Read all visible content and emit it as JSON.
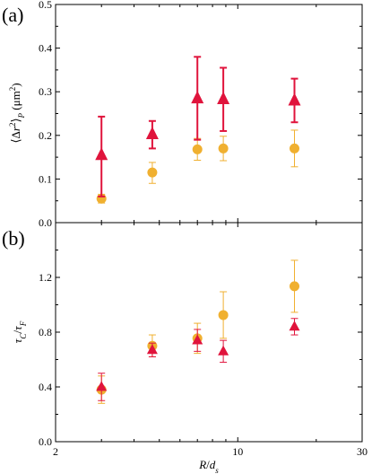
{
  "colors": {
    "triangle": "#e0143c",
    "circle": "#f0b030",
    "axis": "#000000"
  },
  "chart_data": [
    {
      "type": "scatter",
      "panel_label": "(a)",
      "xscale": "log",
      "xlim": [
        2,
        30
      ],
      "ylim": [
        0,
        0.5
      ],
      "yticks": [
        "0.0",
        "0.1",
        "0.2",
        "0.3",
        "0.4",
        "0.5"
      ],
      "ylabel": "⟨Δr²⟩_P (μm²)",
      "series": [
        {
          "marker": "triangle",
          "color": "#e0143c",
          "x": [
            3,
            4.7,
            7,
            8.8,
            16.5
          ],
          "y": [
            0.155,
            0.203,
            0.285,
            0.283,
            0.28
          ],
          "err_low": [
            0.095,
            0.033,
            0.095,
            0.073,
            0.05
          ],
          "err_high": [
            0.088,
            0.03,
            0.095,
            0.072,
            0.05
          ]
        },
        {
          "marker": "circle",
          "color": "#f0b030",
          "x": [
            3,
            4.7,
            7,
            8.8,
            16.5
          ],
          "y": [
            0.055,
            0.115,
            0.168,
            0.17,
            0.17
          ],
          "err_low": [
            0.01,
            0.025,
            0.025,
            0.028,
            0.042
          ],
          "err_high": [
            0.01,
            0.023,
            0.025,
            0.028,
            0.042
          ]
        }
      ]
    },
    {
      "type": "scatter",
      "panel_label": "(b)",
      "xscale": "log",
      "xlim": [
        2,
        30
      ],
      "xticks": [
        "2",
        "10",
        "30"
      ],
      "xlabel": "R/d_s",
      "ylim": [
        0,
        1.6
      ],
      "yticks": [
        "0.0",
        "0.4",
        "0.8",
        "1.2"
      ],
      "ylabel": "τ_C/τ_F",
      "series": [
        {
          "marker": "triangle",
          "color": "#e0143c",
          "x": [
            3,
            4.7,
            7,
            8.8,
            16.5
          ],
          "y": [
            0.4,
            0.67,
            0.74,
            0.66,
            0.84
          ],
          "err_low": [
            0.1,
            0.05,
            0.08,
            0.08,
            0.06
          ],
          "err_high": [
            0.1,
            0.05,
            0.08,
            0.08,
            0.06
          ]
        },
        {
          "marker": "circle",
          "color": "#f0b030",
          "x": [
            3,
            4.7,
            7,
            8.8,
            16.5
          ],
          "y": [
            0.38,
            0.7,
            0.755,
            0.925,
            1.135
          ],
          "err_low": [
            0.1,
            0.08,
            0.11,
            0.17,
            0.19
          ],
          "err_high": [
            0.1,
            0.08,
            0.11,
            0.17,
            0.19
          ]
        }
      ]
    }
  ]
}
